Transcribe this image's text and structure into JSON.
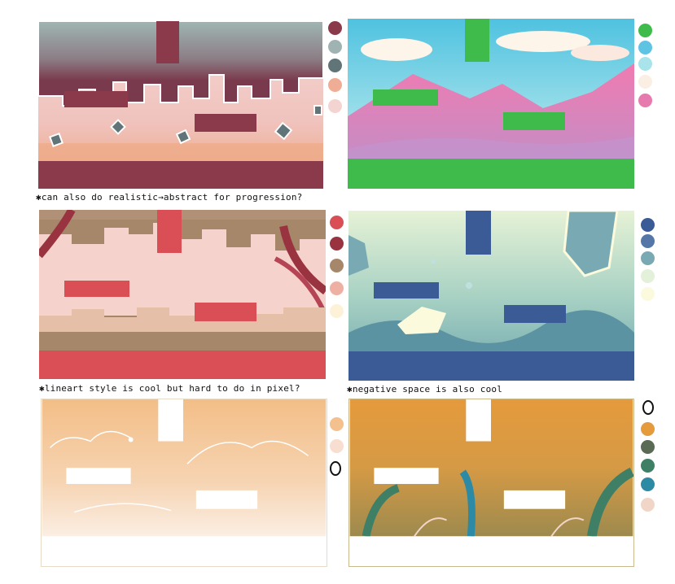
{
  "notes": {
    "note1": "✱can also do realistic→abstract for progression?",
    "note2": "✱lineart style is cool  but hard to do in pixel?",
    "note3": "✱negative space is also cool"
  },
  "panels": [
    {
      "name": "panel-crimson-pixel",
      "palette": [
        "#8a3a4a",
        "#9fb3b3",
        "#617478",
        "#f0ad95",
        "#f3d4d0"
      ]
    },
    {
      "name": "panel-green-mountains",
      "palette": [
        "#3ebb4a",
        "#5fc3e3",
        "#a8e4ea",
        "#fbeee3",
        "#e67aae"
      ]
    },
    {
      "name": "panel-red-trees",
      "palette": [
        "#d94f55",
        "#9a3340",
        "#a6876a",
        "#eeb0a3",
        "#fdf2d8"
      ]
    },
    {
      "name": "panel-blue-rocks",
      "palette": [
        "#3b5b96",
        "#5477a8",
        "#79aab4",
        "#e3f0da",
        "#fcfadc"
      ]
    },
    {
      "name": "panel-peach-lineart",
      "palette": [
        "#f4c08e",
        "#f7ded0",
        "outline"
      ]
    },
    {
      "name": "panel-amber-plants",
      "palette": [
        "outline",
        "#e59a3c",
        "#5a6a55",
        "#3e7f65",
        "#2d8aa4",
        "#f1d6c8"
      ]
    }
  ]
}
